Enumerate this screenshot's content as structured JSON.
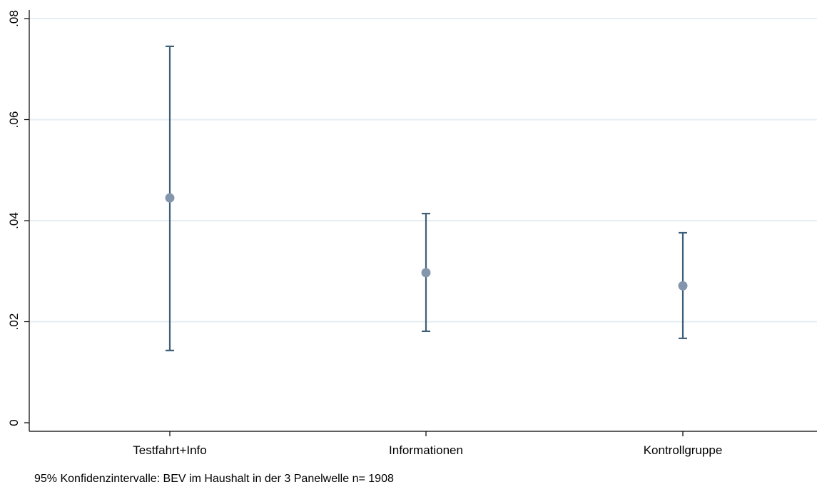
{
  "chart_data": {
    "type": "errorbar",
    "categories": [
      "Testfahrt+Info",
      "Informationen",
      "Kontrollgruppe"
    ],
    "series": [
      {
        "estimates": [
          0.0445,
          0.0297,
          0.0271
        ],
        "ci_lower": [
          0.0143,
          0.0181,
          0.0167
        ],
        "ci_upper": [
          0.0745,
          0.0414,
          0.0376
        ]
      }
    ],
    "ylim": [
      0,
      0.08
    ],
    "yticks": [
      0,
      0.02,
      0.04,
      0.06,
      0.08
    ],
    "ytick_labels": [
      "0",
      ".02",
      ".04",
      ".06",
      ".08"
    ],
    "grid": true,
    "note": "95% Konfidenzintervalle: BEV im Haushalt in der 3 Panelwelle n= 1908",
    "colors": {
      "bar": "#3e5f7a",
      "point": "#8496ad",
      "grid": "#e6eef3",
      "axis": "#000000"
    }
  }
}
